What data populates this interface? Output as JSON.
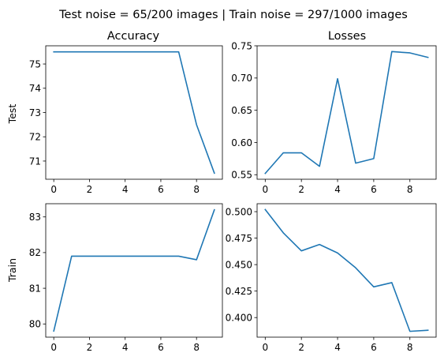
{
  "suptitle": "Test noise = 65/200 images | Train noise = 297/1000 images",
  "row_labels": {
    "test": "Test",
    "train": "Train"
  },
  "col_titles": {
    "accuracy": "Accuracy",
    "losses": "Losses"
  },
  "colors": {
    "series": "#1f77b4",
    "axes": "#000000",
    "background": "#ffffff"
  },
  "chart_data": [
    {
      "type": "line",
      "row": "Test",
      "column": "Accuracy",
      "x": [
        0,
        1,
        2,
        3,
        4,
        5,
        6,
        7,
        8,
        9
      ],
      "y": [
        75.5,
        75.5,
        75.5,
        75.5,
        75.5,
        75.5,
        75.5,
        75.5,
        72.5,
        70.5
      ],
      "xlim": [
        -0.45,
        9.45
      ],
      "ylim": [
        70.25,
        75.75
      ],
      "xticks": [
        0,
        2,
        4,
        6,
        8
      ],
      "yticks": [
        71,
        72,
        73,
        74,
        75
      ],
      "ytick_labels": [
        "71",
        "72",
        "73",
        "74",
        "75"
      ]
    },
    {
      "type": "line",
      "row": "Test",
      "column": "Losses",
      "x": [
        0,
        1,
        2,
        3,
        4,
        5,
        6,
        7,
        8,
        9
      ],
      "y": [
        0.552,
        0.584,
        0.584,
        0.563,
        0.699,
        0.568,
        0.575,
        0.741,
        0.739,
        0.732
      ],
      "xlim": [
        -0.45,
        9.45
      ],
      "ylim": [
        0.543,
        0.75
      ],
      "xticks": [
        0,
        2,
        4,
        6,
        8
      ],
      "yticks": [
        0.55,
        0.6,
        0.65,
        0.7,
        0.75
      ],
      "ytick_labels": [
        "0.55",
        "0.60",
        "0.65",
        "0.70",
        "0.75"
      ]
    },
    {
      "type": "line",
      "row": "Train",
      "column": "Accuracy",
      "x": [
        0,
        1,
        2,
        3,
        4,
        5,
        6,
        7,
        8,
        9
      ],
      "y": [
        79.8,
        81.9,
        81.9,
        81.9,
        81.9,
        81.9,
        81.9,
        81.9,
        81.8,
        83.2
      ],
      "xlim": [
        -0.45,
        9.45
      ],
      "ylim": [
        79.63,
        83.37
      ],
      "xticks": [
        0,
        2,
        4,
        6,
        8
      ],
      "yticks": [
        80,
        81,
        82,
        83
      ],
      "ytick_labels": [
        "80",
        "81",
        "82",
        "83"
      ]
    },
    {
      "type": "line",
      "row": "Train",
      "column": "Losses",
      "x": [
        0,
        1,
        2,
        3,
        4,
        5,
        6,
        7,
        8,
        9
      ],
      "y": [
        0.502,
        0.48,
        0.463,
        0.469,
        0.461,
        0.447,
        0.429,
        0.433,
        0.387,
        0.388
      ],
      "xlim": [
        -0.45,
        9.45
      ],
      "ylim": [
        0.3815,
        0.5075
      ],
      "xticks": [
        0,
        2,
        4,
        6,
        8
      ],
      "yticks": [
        0.4,
        0.425,
        0.45,
        0.475,
        0.5
      ],
      "ytick_labels": [
        "0.400",
        "0.425",
        "0.450",
        "0.475",
        "0.500"
      ]
    }
  ]
}
